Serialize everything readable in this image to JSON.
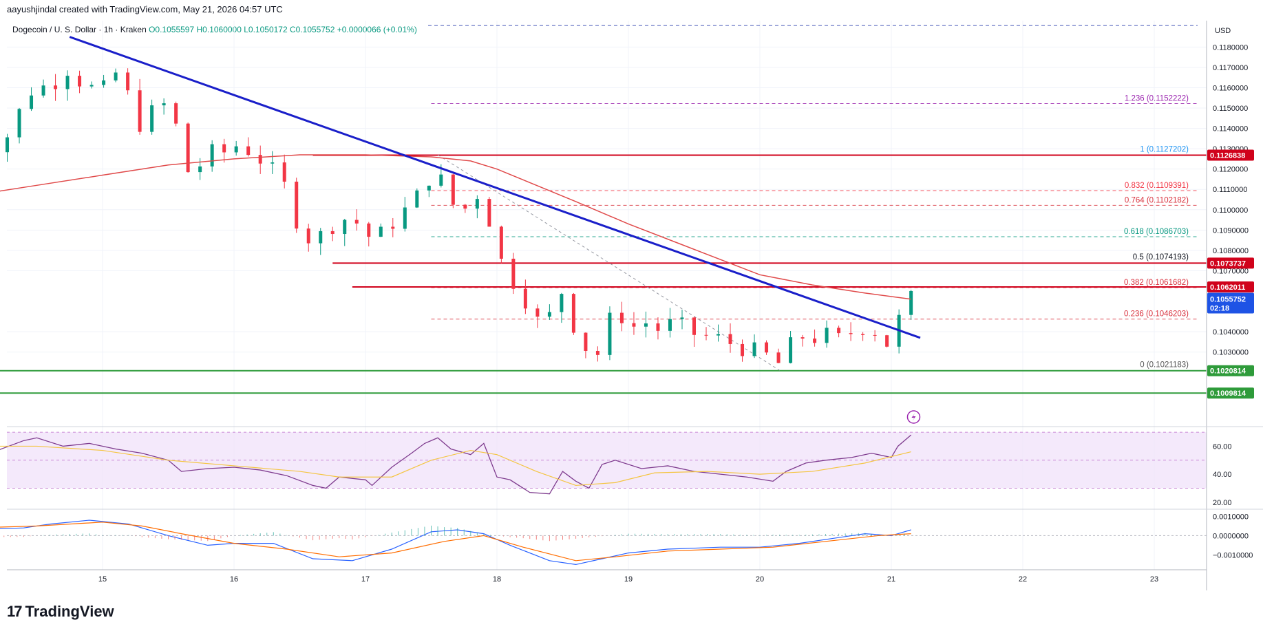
{
  "attribution": "aayushjindal created with TradingView.com, May 21, 2026 04:57 UTC",
  "symbol": {
    "name": "Dogecoin / U. S. Dollar · 1h · Kraken",
    "open": "O0.1055597",
    "high": "H0.1060000",
    "low": "L0.1050172",
    "close": "C0.1055752",
    "change": "+0.0000066 (+0.01%)"
  },
  "currency_label": "USD",
  "logo_text": "TradingView",
  "colors": {
    "up": "#089981",
    "down": "#f23645",
    "trendline": "#1a1fc9",
    "ma": "#e04a4a",
    "resistance": "#d0021b",
    "support": "#2e9b3a",
    "rsi": "#7e3b8e",
    "rsi_ma": "#f4c542",
    "rsi_band": "#efe0fa",
    "macd": "#2962ff",
    "signal": "#ff6d00",
    "fib": "#d93440"
  },
  "chart_data": [
    {
      "type": "candlestick",
      "title": "Dogecoin / U. S. Dollar · 1h · Kraken",
      "price_axis_ticks": [
        "0.1180000",
        "0.1170000",
        "0.1160000",
        "0.1150000",
        "0.1140000",
        "0.1130000",
        "0.1120000",
        "0.1110000",
        "0.1100000",
        "0.1090000",
        "0.1080000",
        "0.1070000",
        "0.1040000",
        "0.1030000"
      ],
      "time_axis_ticks": [
        "15",
        "16",
        "17",
        "18",
        "19",
        "20",
        "21",
        "22",
        "23"
      ],
      "ylim": [
        0.0995,
        0.1193
      ],
      "close_path": [
        [
          14.0,
          0.1148
        ],
        [
          14.1,
          0.1135
        ],
        [
          14.2,
          0.1132
        ],
        [
          14.3,
          0.1138
        ],
        [
          14.4,
          0.1153
        ],
        [
          14.5,
          0.1163
        ],
        [
          14.6,
          0.1158
        ],
        [
          14.7,
          0.1172
        ],
        [
          14.8,
          0.1165
        ],
        [
          14.9,
          0.116
        ],
        [
          15.0,
          0.1158
        ],
        [
          15.1,
          0.1167
        ],
        [
          15.2,
          0.1155
        ],
        [
          15.3,
          0.114
        ],
        [
          15.4,
          0.115
        ],
        [
          15.5,
          0.1152
        ],
        [
          15.55,
          0.1145
        ],
        [
          15.6,
          0.112
        ],
        [
          15.7,
          0.1118
        ],
        [
          15.8,
          0.1128
        ],
        [
          15.9,
          0.1127
        ],
        [
          16.0,
          0.1132
        ],
        [
          16.1,
          0.113
        ],
        [
          16.2,
          0.1125
        ],
        [
          16.3,
          0.1118
        ],
        [
          16.4,
          0.111
        ],
        [
          16.45,
          0.1098
        ],
        [
          16.55,
          0.1088
        ],
        [
          16.6,
          0.1083
        ],
        [
          16.7,
          0.109
        ],
        [
          16.8,
          0.1096
        ],
        [
          16.9,
          0.1095
        ],
        [
          17.0,
          0.1091
        ],
        [
          17.05,
          0.1083
        ],
        [
          17.15,
          0.109
        ],
        [
          17.25,
          0.1097
        ],
        [
          17.35,
          0.1102
        ],
        [
          17.45,
          0.1112
        ],
        [
          17.5,
          0.1118
        ],
        [
          17.55,
          0.112
        ],
        [
          17.6,
          0.1108
        ],
        [
          17.65,
          0.1103
        ],
        [
          17.75,
          0.11
        ],
        [
          17.85,
          0.1108
        ],
        [
          17.92,
          0.1098
        ],
        [
          18.0,
          0.1088
        ],
        [
          18.05,
          0.1068
        ],
        [
          18.1,
          0.1066
        ],
        [
          18.2,
          0.1062
        ],
        [
          18.25,
          0.1045
        ],
        [
          18.35,
          0.1045
        ],
        [
          18.45,
          0.105
        ],
        [
          18.5,
          0.1062
        ],
        [
          18.6,
          0.104
        ],
        [
          18.7,
          0.103
        ],
        [
          18.75,
          0.1026
        ],
        [
          18.85,
          0.1045
        ],
        [
          18.95,
          0.1048
        ],
        [
          19.05,
          0.1042
        ],
        [
          19.15,
          0.1045
        ],
        [
          19.25,
          0.104
        ],
        [
          19.35,
          0.1045
        ],
        [
          19.45,
          0.104
        ],
        [
          19.55,
          0.1038
        ],
        [
          19.65,
          0.1037
        ],
        [
          19.75,
          0.1035
        ],
        [
          19.85,
          0.1033
        ],
        [
          19.95,
          0.103
        ],
        [
          20.05,
          0.1028
        ],
        [
          20.15,
          0.1024
        ],
        [
          20.2,
          0.103
        ],
        [
          20.3,
          0.1038
        ],
        [
          20.4,
          0.1037
        ],
        [
          20.5,
          0.1038
        ],
        [
          20.6,
          0.1036
        ],
        [
          20.7,
          0.104
        ],
        [
          20.8,
          0.1043
        ],
        [
          20.9,
          0.104
        ],
        [
          20.95,
          0.1034
        ],
        [
          21.0,
          0.1035
        ],
        [
          21.05,
          0.1045
        ],
        [
          21.1,
          0.105
        ],
        [
          21.15,
          0.1056
        ]
      ],
      "series": [
        {
          "name": "",
          "type": "ma",
          "points": [
            [
              14.0,
              0.1107
            ],
            [
              14.5,
              0.1112
            ],
            [
              15.0,
              0.1117
            ],
            [
              15.5,
              0.1122
            ],
            [
              16.0,
              0.1125
            ],
            [
              16.5,
              0.1127
            ],
            [
              17.0,
              0.1127
            ],
            [
              17.5,
              0.1126
            ],
            [
              17.8,
              0.1124
            ],
            [
              18.0,
              0.112
            ],
            [
              18.3,
              0.1112
            ],
            [
              18.6,
              0.1104
            ],
            [
              19.0,
              0.1093
            ],
            [
              19.4,
              0.1083
            ],
            [
              19.8,
              0.1073
            ],
            [
              20.0,
              0.1068
            ],
            [
              20.4,
              0.1063
            ],
            [
              20.8,
              0.1059
            ],
            [
              21.15,
              0.1056
            ]
          ]
        },
        {
          "name": "",
          "type": "trendline",
          "points": [
            [
              14.75,
              0.1185
            ],
            [
              21.22,
              0.1037
            ]
          ]
        }
      ],
      "fib_levels": [
        {
          "label": "1.236 (0.1152222)",
          "value": 0.1152222,
          "color": "#9c27b0",
          "style": "dashed"
        },
        {
          "label": "1 (0.1127202)",
          "value": 0.1127202,
          "color": "#2196f3",
          "style": "none"
        },
        {
          "label": "0.832 (0.1109391)",
          "value": 0.1109391,
          "color": "#f23645",
          "style": "dashed"
        },
        {
          "label": "0.764 (0.1102182)",
          "value": 0.1102182,
          "color": "#d93440",
          "style": "dashed"
        },
        {
          "label": "0.618 (0.1086703)",
          "value": 0.1086703,
          "color": "#089981",
          "style": "dashed"
        },
        {
          "label": "0.5 (0.1074193)",
          "value": 0.1074193,
          "color": "#131722",
          "style": "none"
        },
        {
          "label": "0.382 (0.1061682)",
          "value": 0.1061682,
          "color": "#d93440",
          "style": "dashed"
        },
        {
          "label": "0.236 (0.1046203)",
          "value": 0.1046203,
          "color": "#d93440",
          "style": "dashed"
        },
        {
          "label": "0 (0.1021183)",
          "value": 0.1021183,
          "color": "#555555",
          "style": "none"
        }
      ],
      "horizontal_lines": [
        {
          "value": 0.1126838,
          "label": "0.1126838",
          "color": "#d0021b",
          "start": 16.6
        },
        {
          "value": 0.1073737,
          "label": "0.1073737",
          "color": "#d0021b",
          "start": 16.75
        },
        {
          "value": 0.1062011,
          "label": "0.1062011",
          "color": "#d0021b",
          "start": 16.9
        },
        {
          "value": 0.1020814,
          "label": "0.1020814",
          "color": "#2e9b3a",
          "start": 14.0
        },
        {
          "value": 0.1009814,
          "label": "0.1009814",
          "color": "#2e9b3a",
          "start": 14.0
        }
      ],
      "last_price": {
        "value": 0.1055752,
        "label": "0.1055752",
        "countdown": "02:18"
      }
    },
    {
      "type": "line",
      "title": "",
      "ylim": [
        16,
        73
      ],
      "axis_ticks": [
        "60.00",
        "40.00",
        "20.00"
      ],
      "band": [
        30,
        70
      ],
      "series": [
        {
          "name": "",
          "values": [
            [
              14,
              62
            ],
            [
              14.2,
              57
            ],
            [
              14.4,
              64
            ],
            [
              14.5,
              66
            ],
            [
              14.7,
              60
            ],
            [
              14.9,
              62
            ],
            [
              15.1,
              58
            ],
            [
              15.3,
              55
            ],
            [
              15.5,
              50
            ],
            [
              15.6,
              42
            ],
            [
              15.8,
              44
            ],
            [
              16.0,
              45
            ],
            [
              16.2,
              43
            ],
            [
              16.4,
              39
            ],
            [
              16.6,
              32
            ],
            [
              16.7,
              30
            ],
            [
              16.8,
              38
            ],
            [
              17.0,
              36
            ],
            [
              17.05,
              32
            ],
            [
              17.2,
              45
            ],
            [
              17.35,
              55
            ],
            [
              17.45,
              62
            ],
            [
              17.55,
              66
            ],
            [
              17.65,
              58
            ],
            [
              17.8,
              54
            ],
            [
              17.9,
              62
            ],
            [
              18.0,
              38
            ],
            [
              18.1,
              36
            ],
            [
              18.25,
              27
            ],
            [
              18.4,
              26
            ],
            [
              18.5,
              42
            ],
            [
              18.6,
              35
            ],
            [
              18.7,
              30
            ],
            [
              18.8,
              47
            ],
            [
              18.9,
              50
            ],
            [
              19.1,
              44
            ],
            [
              19.3,
              46
            ],
            [
              19.5,
              42
            ],
            [
              19.7,
              40
            ],
            [
              19.9,
              38
            ],
            [
              20.1,
              35
            ],
            [
              20.2,
              42
            ],
            [
              20.35,
              48
            ],
            [
              20.5,
              50
            ],
            [
              20.7,
              52
            ],
            [
              20.85,
              55
            ],
            [
              21.0,
              52
            ],
            [
              21.05,
              60
            ],
            [
              21.15,
              68
            ]
          ]
        },
        {
          "name": "",
          "values": [
            [
              14,
              60
            ],
            [
              14.5,
              60
            ],
            [
              15.0,
              57
            ],
            [
              15.5,
              50
            ],
            [
              16.0,
              46
            ],
            [
              16.5,
              42
            ],
            [
              16.8,
              38
            ],
            [
              17.2,
              38
            ],
            [
              17.5,
              50
            ],
            [
              17.8,
              57
            ],
            [
              18.0,
              54
            ],
            [
              18.3,
              42
            ],
            [
              18.6,
              32
            ],
            [
              18.9,
              34
            ],
            [
              19.2,
              41
            ],
            [
              19.6,
              42
            ],
            [
              20.0,
              40
            ],
            [
              20.4,
              42
            ],
            [
              20.8,
              48
            ],
            [
              21.15,
              56
            ]
          ]
        }
      ]
    },
    {
      "type": "line",
      "title": "",
      "ylim": [
        -0.0017,
        0.0013
      ],
      "axis_ticks": [
        "0.0010000",
        "0.0000000",
        "−0.0010000"
      ],
      "series": [
        {
          "name": "",
          "values": [
            [
              14,
              0.0003
            ],
            [
              14.4,
              0.0004
            ],
            [
              14.6,
              0.0006
            ],
            [
              14.9,
              0.0008
            ],
            [
              15.2,
              0.0006
            ],
            [
              15.5,
              0.0
            ],
            [
              15.8,
              -0.0005
            ],
            [
              16.0,
              -0.0004
            ],
            [
              16.3,
              -0.0004
            ],
            [
              16.6,
              -0.0012
            ],
            [
              16.9,
              -0.0013
            ],
            [
              17.2,
              -0.0007
            ],
            [
              17.5,
              0.0002
            ],
            [
              17.7,
              0.0003
            ],
            [
              17.9,
              0.0001
            ],
            [
              18.1,
              -0.0005
            ],
            [
              18.4,
              -0.0013
            ],
            [
              18.6,
              -0.0015
            ],
            [
              18.8,
              -0.0012
            ],
            [
              19.0,
              -0.0009
            ],
            [
              19.3,
              -0.0007
            ],
            [
              19.7,
              -0.0006
            ],
            [
              20.0,
              -0.0006
            ],
            [
              20.3,
              -0.0004
            ],
            [
              20.6,
              -0.0001
            ],
            [
              20.8,
              0.0001
            ],
            [
              21.0,
              0.0
            ],
            [
              21.15,
              0.0003
            ]
          ]
        },
        {
          "name": "",
          "values": [
            [
              14,
              0.0004
            ],
            [
              14.5,
              0.0005
            ],
            [
              15.0,
              0.0007
            ],
            [
              15.3,
              0.0005
            ],
            [
              15.6,
              0.0001
            ],
            [
              16.0,
              -0.0004
            ],
            [
              16.4,
              -0.0007
            ],
            [
              16.8,
              -0.0011
            ],
            [
              17.2,
              -0.0009
            ],
            [
              17.6,
              -0.0003
            ],
            [
              17.9,
              0.0
            ],
            [
              18.2,
              -0.0006
            ],
            [
              18.6,
              -0.0013
            ],
            [
              18.9,
              -0.0011
            ],
            [
              19.3,
              -0.0008
            ],
            [
              19.7,
              -0.0007
            ],
            [
              20.1,
              -0.0006
            ],
            [
              20.5,
              -0.0003
            ],
            [
              20.9,
              0.0
            ],
            [
              21.15,
              0.0001
            ]
          ]
        }
      ]
    }
  ]
}
